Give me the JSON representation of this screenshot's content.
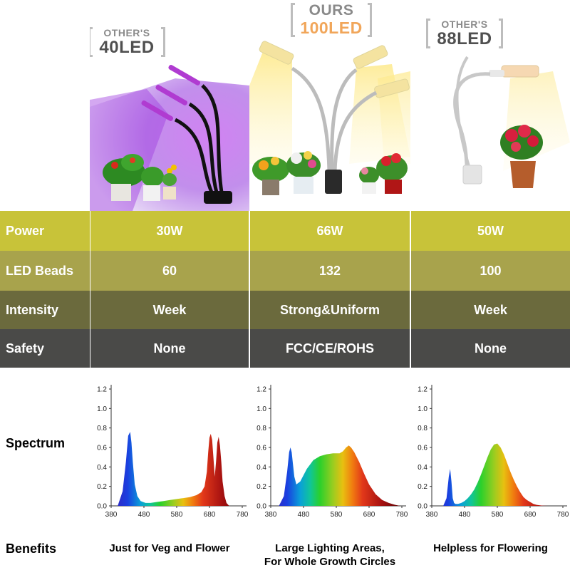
{
  "products": [
    {
      "badge_line1": "OTHER'S",
      "badge_line2": "40LED"
    },
    {
      "badge_line1": "OURS",
      "badge_line2": "100LED"
    },
    {
      "badge_line1": "OTHER'S",
      "badge_line2": "88LED"
    }
  ],
  "table": {
    "rows": [
      {
        "label": "Power",
        "values": [
          "30W",
          "66W",
          "50W"
        ],
        "color": "#c8c339"
      },
      {
        "label": "LED Beads",
        "values": [
          "60",
          "132",
          "100"
        ],
        "color": "#a8a34c"
      },
      {
        "label": "Intensity",
        "values": [
          "Week",
          "Strong&Uniform",
          "Week"
        ],
        "color": "#6b6a3d"
      },
      {
        "label": "Safety",
        "values": [
          "None",
          "FCC/CE/ROHS",
          "None"
        ],
        "color": "#4a4a48"
      }
    ]
  },
  "spectrum_label": "Spectrum",
  "benefits_label": "Benefits",
  "benefits": [
    [
      "Just for Veg and Flower"
    ],
    [
      "Large Lighting Areas,",
      "For Whole Growth Circles"
    ],
    [
      "Helpless for Flowering"
    ]
  ],
  "chart_data": [
    {
      "type": "area",
      "title": "",
      "xlabel": "",
      "ylabel": "",
      "x_ticks": [
        380,
        480,
        580,
        680,
        780
      ],
      "y_ticks": [
        "0.0",
        "0.2",
        "0.4",
        "0.6",
        "0.8",
        "1.0",
        "1.2"
      ],
      "xlim": [
        380,
        780
      ],
      "ylim": [
        0,
        1.2
      ],
      "x": [
        400,
        415,
        425,
        432,
        438,
        442,
        446,
        452,
        460,
        470,
        485,
        500,
        520,
        540,
        560,
        580,
        600,
        620,
        640,
        655,
        665,
        672,
        676,
        680,
        684,
        688,
        692,
        696,
        700,
        704,
        708,
        712,
        716,
        720,
        726,
        732,
        740
      ],
      "y": [
        0.0,
        0.15,
        0.45,
        0.72,
        0.76,
        0.65,
        0.45,
        0.22,
        0.1,
        0.05,
        0.03,
        0.03,
        0.04,
        0.05,
        0.06,
        0.07,
        0.08,
        0.09,
        0.11,
        0.14,
        0.2,
        0.35,
        0.55,
        0.7,
        0.74,
        0.68,
        0.5,
        0.3,
        0.45,
        0.65,
        0.71,
        0.62,
        0.45,
        0.25,
        0.1,
        0.03,
        0.0
      ]
    },
    {
      "type": "area",
      "title": "",
      "xlabel": "",
      "ylabel": "",
      "x_ticks": [
        380,
        480,
        580,
        680,
        780
      ],
      "y_ticks": [
        "0.0",
        "0.2",
        "0.4",
        "0.6",
        "0.8",
        "1.0",
        "1.2"
      ],
      "xlim": [
        380,
        780
      ],
      "ylim": [
        0,
        1.2
      ],
      "x": [
        405,
        420,
        430,
        436,
        440,
        444,
        448,
        452,
        458,
        470,
        490,
        510,
        530,
        550,
        570,
        590,
        600,
        610,
        618,
        625,
        635,
        650,
        665,
        680,
        700,
        720,
        740,
        760,
        775
      ],
      "y": [
        0.0,
        0.1,
        0.35,
        0.55,
        0.6,
        0.55,
        0.42,
        0.3,
        0.22,
        0.25,
        0.38,
        0.47,
        0.51,
        0.53,
        0.54,
        0.54,
        0.56,
        0.6,
        0.62,
        0.6,
        0.55,
        0.45,
        0.33,
        0.22,
        0.12,
        0.06,
        0.03,
        0.01,
        0.0
      ]
    },
    {
      "type": "area",
      "title": "",
      "xlabel": "",
      "ylabel": "",
      "x_ticks": [
        380,
        480,
        580,
        680,
        780
      ],
      "y_ticks": [
        "0.0",
        "0.2",
        "0.4",
        "0.6",
        "0.8",
        "1.0",
        "1.2"
      ],
      "xlim": [
        380,
        780
      ],
      "ylim": [
        0,
        1.2
      ],
      "x": [
        415,
        425,
        432,
        436,
        440,
        444,
        448,
        452,
        460,
        470,
        480,
        490,
        500,
        510,
        520,
        530,
        540,
        550,
        560,
        570,
        580,
        590,
        600,
        610,
        620,
        630,
        640,
        650,
        660,
        670,
        680,
        690,
        700,
        710,
        720,
        735
      ],
      "y": [
        0.0,
        0.08,
        0.3,
        0.38,
        0.25,
        0.08,
        0.03,
        0.02,
        0.02,
        0.03,
        0.05,
        0.08,
        0.12,
        0.17,
        0.24,
        0.32,
        0.41,
        0.5,
        0.58,
        0.63,
        0.64,
        0.6,
        0.53,
        0.44,
        0.35,
        0.27,
        0.2,
        0.14,
        0.09,
        0.06,
        0.04,
        0.02,
        0.01,
        0.005,
        0.002,
        0.0
      ]
    }
  ]
}
